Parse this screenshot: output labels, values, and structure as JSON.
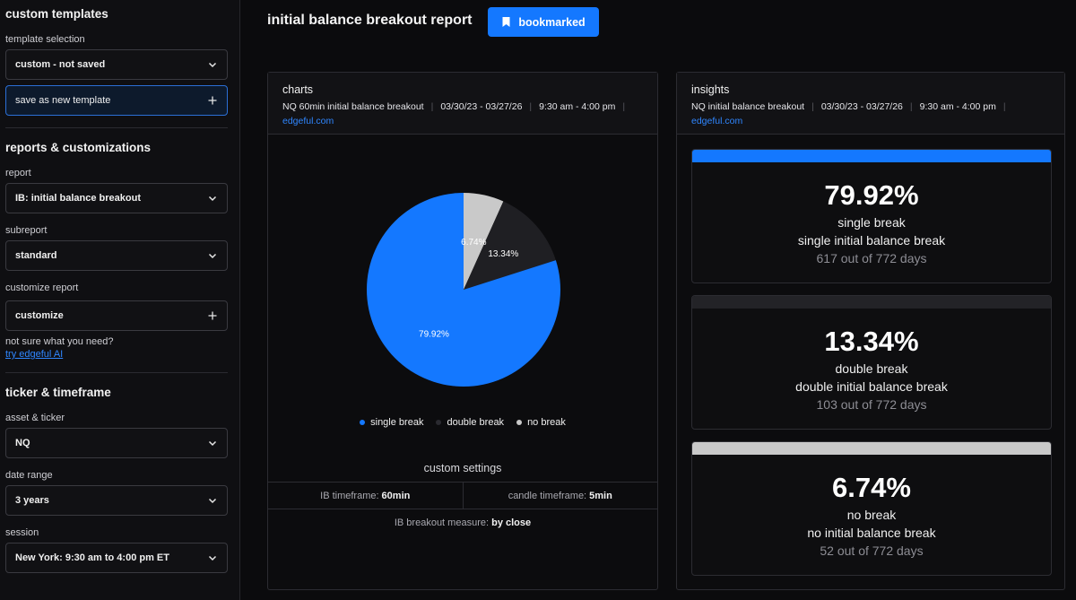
{
  "sidebar": {
    "custom_templates_title": "custom templates",
    "template_selection_label": "template selection",
    "template_selection_value": "custom - not saved",
    "save_template_label": "save as new template",
    "reports_title": "reports & customizations",
    "report_label": "report",
    "report_value": "IB: initial balance breakout",
    "subreport_label": "subreport",
    "subreport_value": "standard",
    "customize_report_label": "customize report",
    "customize_value": "customize",
    "help_text": "not sure what you need?",
    "help_link": "try edgeful AI",
    "ticker_title": "ticker & timeframe",
    "asset_label": "asset & ticker",
    "asset_value": "NQ",
    "date_range_label": "date range",
    "date_range_value": "3 years",
    "session_label": "session",
    "session_value": "New York: 9:30 am to 4:00 pm ET"
  },
  "header": {
    "title": "initial balance breakout report",
    "bookmark_label": "bookmarked"
  },
  "charts_panel": {
    "title": "charts",
    "meta_ticker": "NQ 60min initial balance breakout",
    "meta_dates": "03/30/23 - 03/27/26",
    "meta_session": "9:30 am - 4:00 pm",
    "meta_site": "edgeful.com",
    "custom_settings_title": "custom settings",
    "ib_timeframe_label": "IB timeframe:",
    "ib_timeframe_value": "60min",
    "candle_timeframe_label": "candle timeframe:",
    "candle_timeframe_value": "5min",
    "breakout_measure_label": "IB breakout measure:",
    "breakout_measure_value": "by close"
  },
  "insights_panel": {
    "title": "insights",
    "meta_ticker": "NQ initial balance breakout",
    "meta_dates": "03/30/23 - 03/27/26",
    "meta_session": "9:30 am - 4:00 pm",
    "meta_site": "edgeful.com",
    "cards": [
      {
        "pct": "79.92%",
        "name": "single break",
        "desc": "single initial balance break",
        "count": "617 out of 772 days",
        "color": "#1478ff"
      },
      {
        "pct": "13.34%",
        "name": "double break",
        "desc": "double initial balance break",
        "count": "103 out of 772 days",
        "color": "#232327"
      },
      {
        "pct": "6.74%",
        "name": "no break",
        "desc": "no initial balance break",
        "count": "52 out of 772 days",
        "color": "#c9c9c9"
      }
    ]
  },
  "chart_data": {
    "type": "pie",
    "title": "",
    "categories": [
      "single break",
      "double break",
      "no break"
    ],
    "values": [
      79.92,
      13.34,
      6.74
    ],
    "labels": [
      "79.92%",
      "13.34%",
      "6.74%"
    ],
    "colors": [
      "#1478ff",
      "#1f1f23",
      "#c9c9c9"
    ],
    "legend_position": "bottom"
  }
}
